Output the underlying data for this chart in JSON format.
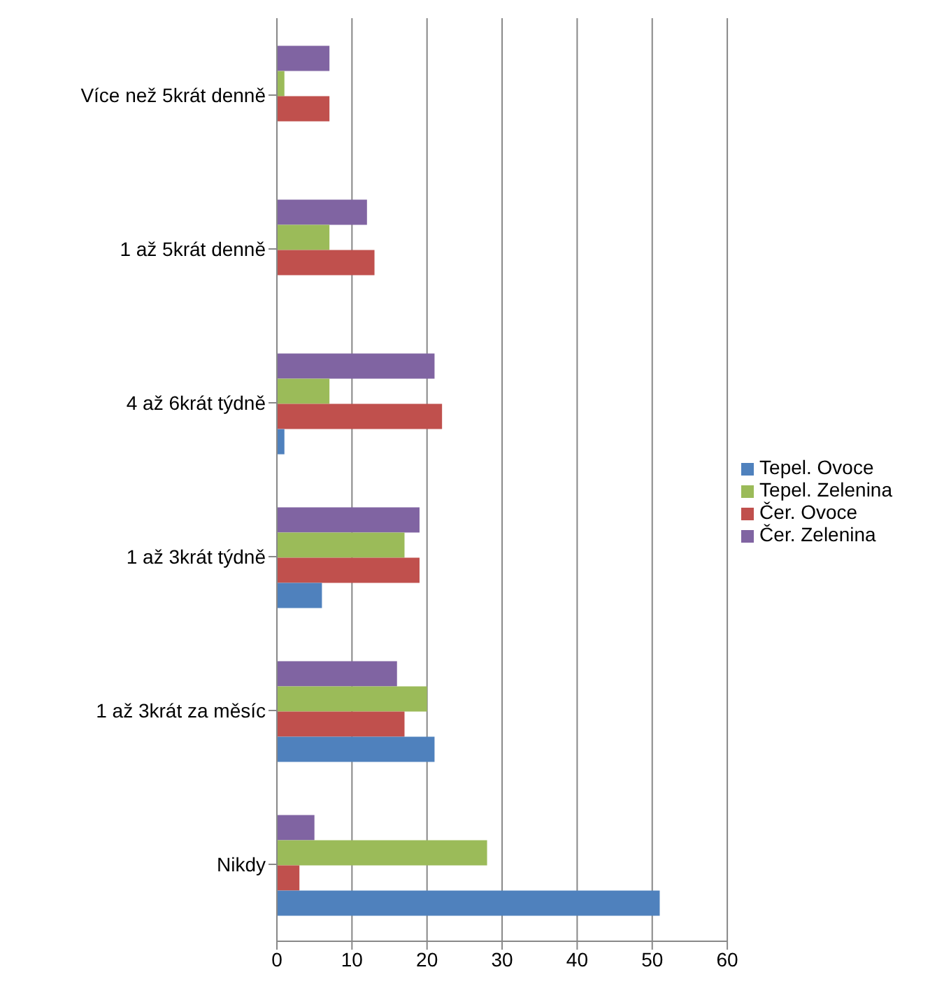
{
  "chart_data": {
    "type": "bar",
    "orientation": "horizontal",
    "categories": [
      "Více než 5krát denně",
      "1 až 5krát denně",
      "4 až 6krát týdně",
      "1 až 3krát týdně",
      "1 až 3krát za měsíc",
      "Nikdy"
    ],
    "series": [
      {
        "name": "Čer. Zelenina",
        "color": "#8064a2",
        "values": [
          7,
          12,
          21,
          19,
          16,
          5
        ]
      },
      {
        "name": "Tepel. Zelenina",
        "color": "#9bbb59",
        "values": [
          1,
          7,
          7,
          17,
          20,
          28
        ]
      },
      {
        "name": "Čer. Ovoce",
        "color": "#c0504d",
        "values": [
          7,
          13,
          22,
          19,
          17,
          3
        ]
      },
      {
        "name": "Tepel. Ovoce",
        "color": "#4f81bd",
        "values": [
          0,
          0,
          1,
          6,
          21,
          51
        ]
      }
    ],
    "xlim": [
      0,
      60
    ],
    "xticks": [
      0,
      10,
      20,
      30,
      40,
      50,
      60
    ],
    "grid": "x",
    "legend": "right"
  }
}
